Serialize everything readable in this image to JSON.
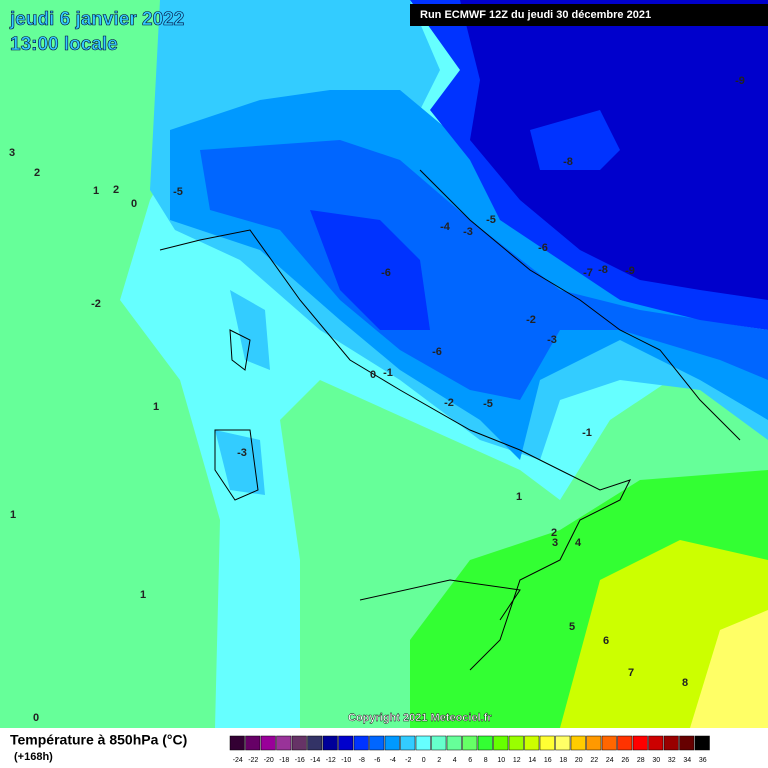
{
  "header": {
    "date": "jeudi 6 janvier 2022",
    "time": "13:00 locale",
    "run": "Run ECMWF 12Z du jeudi 30 décembre 2021"
  },
  "copyright": "Copyright 2021 Meteociel.fr",
  "legend": {
    "title": "Température à 850hPa (°C)",
    "lead": "(+168h)",
    "labels": [
      -24,
      -22,
      -20,
      -18,
      -16,
      -14,
      -12,
      -10,
      -8,
      -6,
      -4,
      -2,
      0,
      2,
      4,
      6,
      8,
      10,
      12,
      14,
      16,
      18,
      20,
      22,
      24,
      26,
      28,
      30,
      32,
      34,
      36
    ],
    "colors": [
      "#330033",
      "#660066",
      "#990099",
      "#993399",
      "#663366",
      "#333366",
      "#000099",
      "#0000cc",
      "#0033ff",
      "#0066ff",
      "#0099ff",
      "#33ccff",
      "#66ffff",
      "#66ffcc",
      "#66ff99",
      "#66ff66",
      "#33ff33",
      "#66ff00",
      "#99ff00",
      "#ccff00",
      "#ffff33",
      "#ffff66",
      "#ffcc00",
      "#ff9900",
      "#ff6600",
      "#ff3300",
      "#ff0000",
      "#cc0000",
      "#990000",
      "#660000",
      "#000000"
    ]
  },
  "contour_labels": [
    3,
    2,
    1,
    2,
    0,
    -5,
    -2,
    1,
    -3,
    1,
    1,
    0,
    -6,
    -4,
    -3,
    -5,
    -6,
    -7,
    -8,
    -9,
    -8,
    -9,
    -2,
    -3,
    -6,
    0,
    -1,
    -2,
    -5,
    -1,
    1,
    2,
    3,
    4,
    5,
    6,
    7,
    8
  ]
}
